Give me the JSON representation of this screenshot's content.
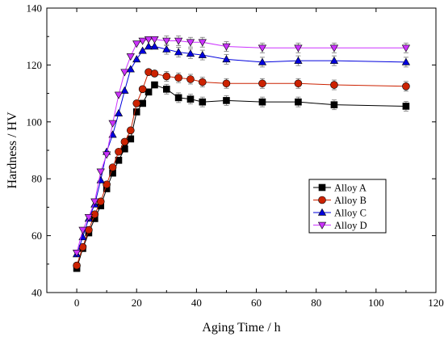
{
  "chart_data": {
    "type": "line",
    "xlabel": "Aging Time / h",
    "ylabel": "Hardness / HV",
    "xlim": [
      -10,
      120
    ],
    "ylim": [
      40,
      140
    ],
    "xticks": [
      0,
      20,
      40,
      60,
      80,
      100,
      120
    ],
    "yticks": [
      40,
      60,
      80,
      100,
      120,
      140
    ],
    "grid": false,
    "legend_position": "center-right",
    "series": [
      {
        "name": "Alloy A",
        "color": "#000000",
        "marker": "square",
        "x": [
          0,
          2,
          4,
          6,
          8,
          10,
          12,
          14,
          16,
          18,
          20,
          22,
          24,
          26,
          30,
          34,
          38,
          42,
          50,
          62,
          74,
          86,
          110
        ],
        "y": [
          48.5,
          55.5,
          61,
          66,
          70.5,
          76.5,
          82,
          86.5,
          90.5,
          94,
          103.5,
          106.5,
          110.5,
          113,
          111.5,
          108.5,
          108,
          107,
          107.5,
          107,
          107,
          106,
          105.5
        ]
      },
      {
        "name": "Alloy B",
        "color": "#cc2200",
        "marker": "circle",
        "x": [
          0,
          2,
          4,
          6,
          8,
          10,
          12,
          14,
          16,
          18,
          20,
          22,
          24,
          26,
          30,
          34,
          38,
          42,
          50,
          62,
          74,
          86,
          110
        ],
        "y": [
          49.5,
          56,
          62,
          67.5,
          72,
          78,
          84,
          89.5,
          93,
          97,
          106.5,
          111.5,
          117.5,
          117,
          116,
          115.5,
          115,
          114,
          113.5,
          113.5,
          113.5,
          113,
          112.5
        ]
      },
      {
        "name": "Alloy C",
        "color": "#0000dd",
        "marker": "triangle-up",
        "x": [
          0,
          2,
          4,
          6,
          8,
          10,
          12,
          14,
          16,
          18,
          20,
          22,
          24,
          26,
          30,
          34,
          38,
          42,
          50,
          62,
          74,
          86,
          110
        ],
        "y": [
          53.5,
          59.5,
          66,
          71,
          79.5,
          89.5,
          95.5,
          103,
          111,
          118.5,
          122,
          125,
          126.5,
          126.5,
          125.5,
          124.5,
          124,
          123.5,
          122,
          121,
          121.5,
          121.5,
          121
        ]
      },
      {
        "name": "Alloy D",
        "color": "#cc33ff",
        "marker": "triangle-down",
        "x": [
          0,
          2,
          4,
          6,
          8,
          10,
          12,
          14,
          16,
          18,
          20,
          22,
          24,
          26,
          30,
          34,
          38,
          42,
          50,
          62,
          74,
          86,
          110
        ],
        "y": [
          54,
          62,
          66.5,
          72,
          82.5,
          88.5,
          99.5,
          109.5,
          117.5,
          123,
          127.5,
          128.5,
          129,
          129,
          128.5,
          128.5,
          128,
          128,
          126.5,
          126,
          126,
          126,
          126
        ]
      }
    ]
  }
}
